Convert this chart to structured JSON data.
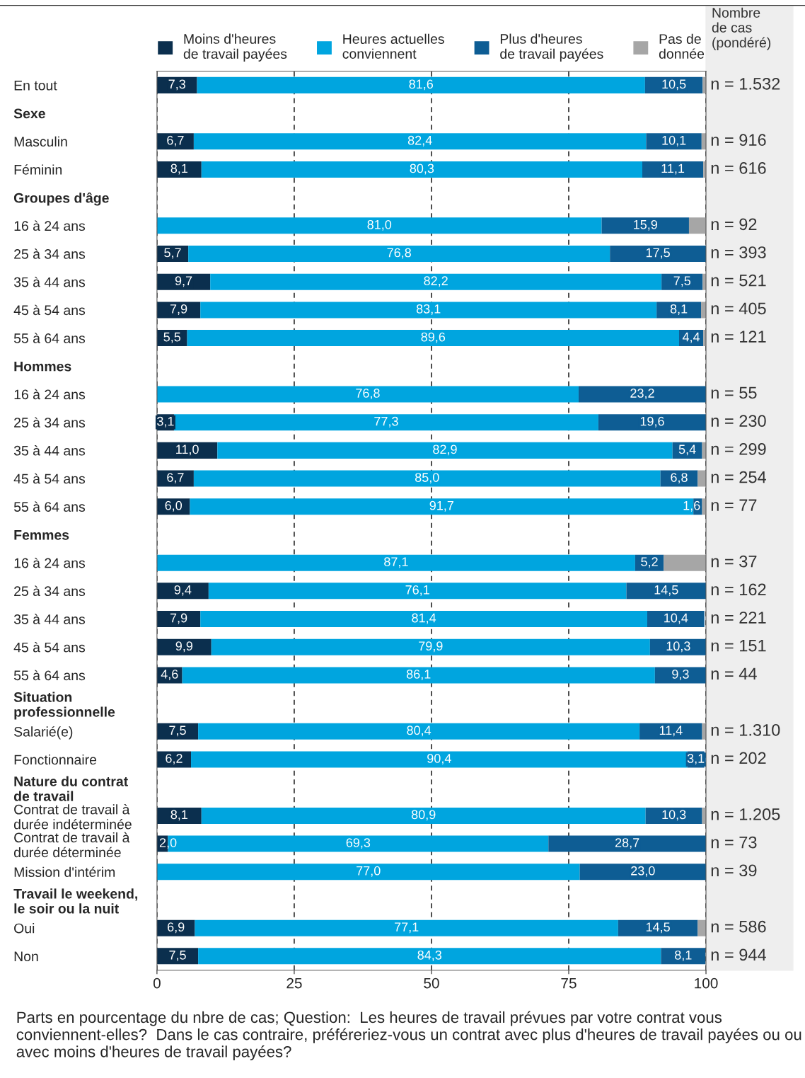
{
  "chart_data": {
    "type": "bar",
    "orientation": "horizontal",
    "stacked": true,
    "categories": [
      "En tout",
      "Sexe",
      "Masculin",
      "Féminin",
      "Groupes d'âge",
      "16 à 24 ans",
      "25 à 34 ans",
      "35 à 44 ans",
      "45 à 54 ans",
      "55 à 64 ans",
      "Hommes",
      "16 à 24 ans",
      "25 à 34 ans",
      "35 à 44 ans",
      "45 à 54 ans",
      "55 à 64 ans",
      "Femmes",
      "16 à 24 ans",
      "25 à 34 ans",
      "35 à 44 ans",
      "45 à 54 ans",
      "55 à 64 ans",
      "Situation\nprofessionnelle",
      "Salarié(e)",
      "Fonctionnaire",
      "Nature du contrat\nde travail",
      "Contrat de travail à\ndurée indéterminée",
      "Contrat de travail à\ndurée déterminée",
      "Mission d'intérim",
      "Travail le weekend,\nle soir ou la nuit",
      "Oui",
      "Non"
    ],
    "series": [
      {
        "name": "Moins d'heures\nde travail payées",
        "color": "#0b2f4e",
        "values": [
          7.3,
          null,
          6.7,
          8.1,
          null,
          null,
          5.7,
          9.7,
          7.9,
          5.5,
          null,
          null,
          3.1,
          11.0,
          6.7,
          6.0,
          null,
          null,
          9.4,
          7.9,
          9.9,
          4.6,
          null,
          7.5,
          6.2,
          null,
          8.1,
          2.0,
          null,
          null,
          6.9,
          7.5
        ],
        "value_labels": [
          "7,3",
          null,
          "6,7",
          "8,1",
          null,
          null,
          "5,7",
          "9,7",
          "7,9",
          "5,5",
          null,
          null,
          "3,1",
          "11,0",
          "6,7",
          "6,0",
          null,
          null,
          "9,4",
          "7,9",
          "9,9",
          "4,6",
          null,
          "7,5",
          "6,2",
          null,
          "8,1",
          "2,0",
          null,
          null,
          "6,9",
          "7,5"
        ]
      },
      {
        "name": "Heures actuelles\nconviennent",
        "color": "#00a5df",
        "values": [
          81.6,
          null,
          82.4,
          80.3,
          null,
          81.0,
          76.8,
          82.2,
          83.1,
          89.6,
          null,
          76.8,
          77.3,
          82.9,
          85.0,
          91.7,
          null,
          87.1,
          76.1,
          81.4,
          79.9,
          86.1,
          null,
          80.4,
          90.4,
          null,
          80.9,
          69.3,
          77.0,
          null,
          77.1,
          84.3
        ],
        "value_labels": [
          "81,6",
          null,
          "82,4",
          "80,3",
          null,
          "81,0",
          "76,8",
          "82,2",
          "83,1",
          "89,6",
          null,
          "76,8",
          "77,3",
          "82,9",
          "85,0",
          "91,7",
          null,
          "87,1",
          "76,1",
          "81,4",
          "79,9",
          "86,1",
          null,
          "80,4",
          "90,4",
          null,
          "80,9",
          "69,3",
          "77,0",
          null,
          "77,1",
          "84,3"
        ]
      },
      {
        "name": "Plus d'heures\nde travail payées",
        "color": "#0e5d94",
        "values": [
          10.5,
          null,
          10.1,
          11.1,
          null,
          15.9,
          17.5,
          7.5,
          8.1,
          4.4,
          null,
          23.2,
          19.6,
          5.4,
          6.8,
          1.6,
          null,
          5.2,
          14.5,
          10.4,
          10.3,
          9.3,
          null,
          11.4,
          3.1,
          null,
          10.3,
          28.7,
          23.0,
          null,
          14.5,
          8.1
        ],
        "value_labels": [
          "10,5",
          null,
          "10,1",
          "11,1",
          null,
          "15,9",
          "17,5",
          "7,5",
          "8,1",
          "4,4",
          null,
          "23,2",
          "19,6",
          "5,4",
          "6,8",
          "1,6",
          null,
          "5,2",
          "14,5",
          "10,4",
          "10,3",
          "9,3",
          null,
          "11,4",
          "3,1",
          null,
          "10,3",
          "28,7",
          "23,0",
          null,
          "14,5",
          "8,1"
        ]
      },
      {
        "name": "Pas de\ndonnée",
        "color": "#a6a6a6",
        "values": [
          0.6,
          null,
          0.8,
          0.5,
          null,
          3.1,
          null,
          0.6,
          0.9,
          0.5,
          null,
          null,
          null,
          0.7,
          1.5,
          0.7,
          null,
          7.7,
          null,
          null,
          null,
          null,
          null,
          0.7,
          null,
          null,
          0.7,
          null,
          null,
          null,
          1.5,
          null
        ]
      }
    ],
    "xlim": [
      0,
      100
    ],
    "xticks": [
      0,
      25,
      50,
      75,
      100
    ],
    "grid": "x",
    "legend": "top",
    "annotations": [
      "Nombre\nde cas\n(pondéré)",
      "n = 1.532",
      "n = 916",
      "n = 616",
      "n = 92",
      "n = 393",
      "n = 521",
      "n = 405",
      "n = 121",
      "n = 55",
      "n = 230",
      "n = 299",
      "n = 254",
      "n = 77",
      "n = 37",
      "n = 162",
      "n = 221",
      "n = 151",
      "n = 44",
      "n = 1.310",
      "n = 202",
      "n = 1.205",
      "n = 73",
      "n = 39",
      "n = 586",
      "n = 944",
      "Parts en pourcentage du nbre de cas; Question:  Les heures de travail prévues par votre contrat vous conviennent-elles?  Dans le cas contraire, préféreriez-vous un contrat avec plus d'heures de travail payées ou ou avec moins d'heures de travail payées?"
    ]
  }
}
